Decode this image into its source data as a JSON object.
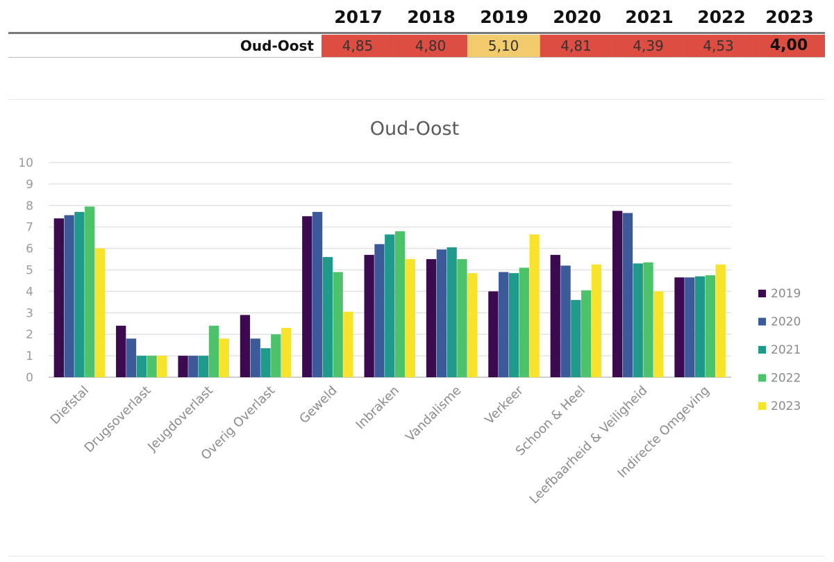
{
  "table": {
    "years": [
      "2017",
      "2018",
      "2019",
      "2020",
      "2021",
      "2022",
      "2023"
    ],
    "row_label": "Oud-Oost",
    "values": [
      "4,85",
      "4,80",
      "5,10",
      "4,81",
      "4,39",
      "4,53",
      "4,00"
    ],
    "cell_colors": [
      "#de4d41",
      "#de4d41",
      "#f2cb6c",
      "#de4d41",
      "#de4d41",
      "#de4d41",
      "#de4d41"
    ]
  },
  "chart_data": {
    "type": "bar",
    "title": "Oud-Oost",
    "xlabel": "",
    "ylabel": "",
    "ylim": [
      0,
      10
    ],
    "yticks": [
      "0",
      "1",
      "2",
      "3",
      "4",
      "5",
      "6",
      "7",
      "8",
      "9",
      "10"
    ],
    "grid": true,
    "legend_position": "right",
    "categories": [
      "Diefstal",
      "Drugsoverlast",
      "Jeugdoverlast",
      "Overig Overlast",
      "Geweld",
      "Inbraken",
      "Vandalisme",
      "Verkeer",
      "Schoon & Heel",
      "Leefbaarheid & Veiligheid",
      "Indirecte Omgeving"
    ],
    "series": [
      {
        "name": "2019",
        "color": "#3b0a4f",
        "values": [
          7.4,
          2.4,
          1.0,
          2.9,
          7.5,
          5.7,
          5.5,
          4.0,
          5.7,
          7.75,
          4.65
        ]
      },
      {
        "name": "2020",
        "color": "#3c5a9a",
        "values": [
          7.55,
          1.8,
          1.0,
          1.8,
          7.7,
          6.2,
          5.95,
          4.9,
          5.2,
          7.65,
          4.65
        ]
      },
      {
        "name": "2021",
        "color": "#1f9a8a",
        "values": [
          7.7,
          1.0,
          1.0,
          1.35,
          5.6,
          6.65,
          6.05,
          4.85,
          3.6,
          5.3,
          4.7
        ]
      },
      {
        "name": "2022",
        "color": "#4cc26a",
        "values": [
          7.95,
          1.0,
          2.4,
          2.0,
          4.9,
          6.8,
          5.5,
          5.1,
          4.05,
          5.35,
          4.75
        ]
      },
      {
        "name": "2023",
        "color": "#f6e32a",
        "values": [
          6.0,
          1.0,
          1.8,
          2.3,
          3.05,
          5.5,
          4.85,
          6.65,
          5.25,
          4.0,
          5.25
        ]
      }
    ]
  }
}
